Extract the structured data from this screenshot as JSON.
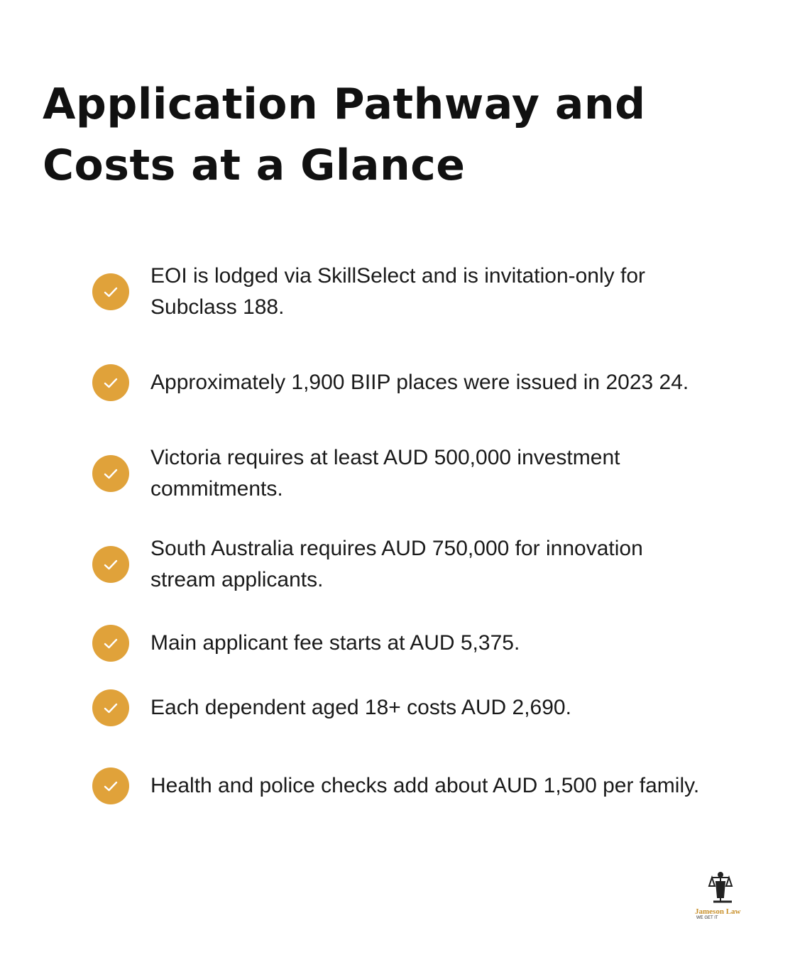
{
  "header": {
    "title": "Application Pathway and Costs at a Glance"
  },
  "items": [
    "EOI is lodged via SkillSelect and is invitation-only for Subclass 188.",
    "Approximately 1,900 BIIP places were issued in 2023  24.",
    "Victoria requires at least AUD 500,000 investment commitments.",
    "South Australia requires AUD 750,000 for innovation stream applicants.",
    "Main applicant fee starts at AUD 5,375.",
    "Each dependent aged 18+ costs AUD 2,690.",
    "Health and police checks add about AUD 1,500 per family."
  ],
  "logo": {
    "name": "Jameson Law",
    "tagline": "WE GET IT"
  }
}
